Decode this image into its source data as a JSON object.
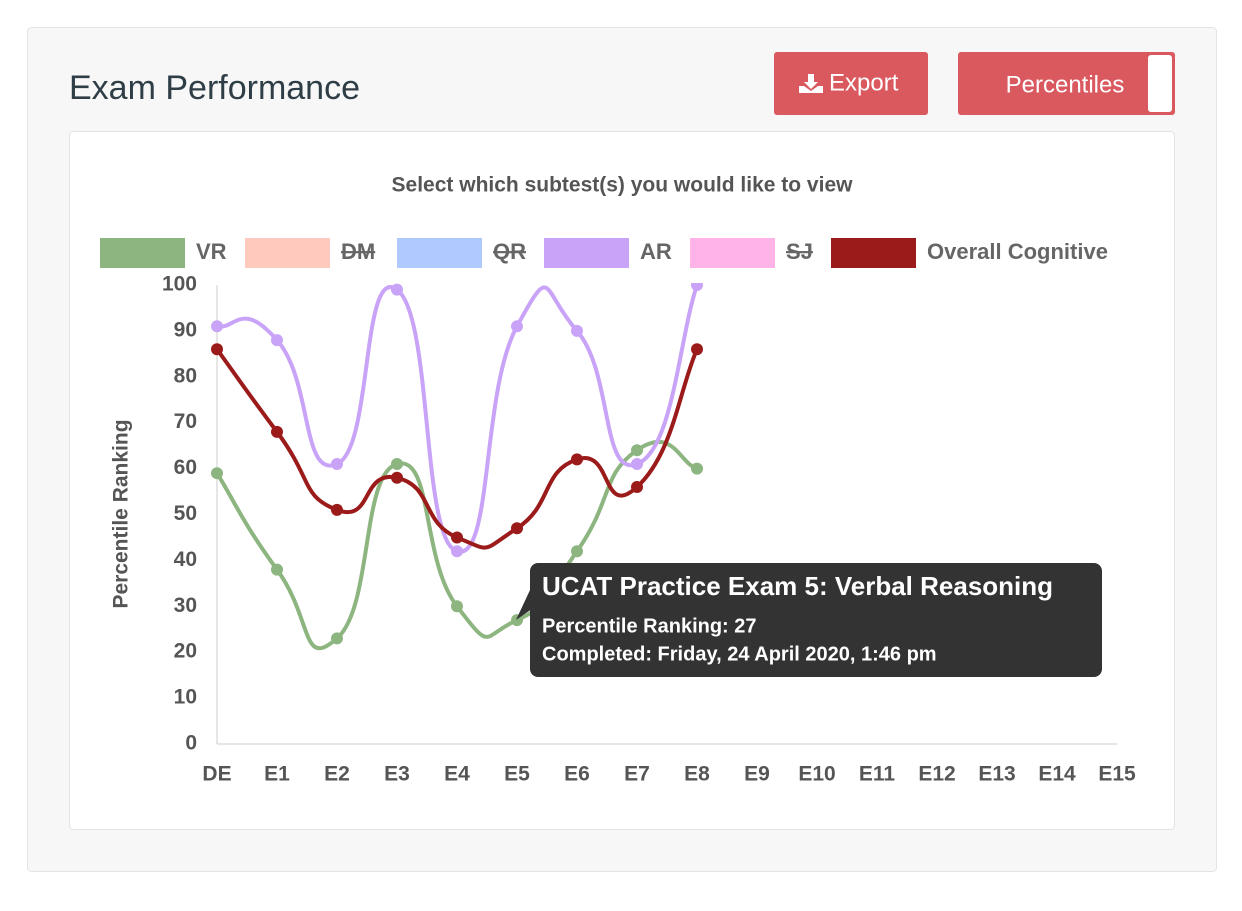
{
  "header": {
    "title": "Exam Performance"
  },
  "buttons": {
    "export": "Export",
    "percentiles": "Percentiles"
  },
  "chart_data": {
    "type": "line",
    "subtitle": "Select which subtest(s) you would like to view",
    "y_label": "Percentile Ranking",
    "categories": [
      "DE",
      "E1",
      "E2",
      "E3",
      "E4",
      "E5",
      "E6",
      "E7",
      "E8",
      "E9",
      "E10",
      "E11",
      "E12",
      "E13",
      "E14",
      "E15"
    ],
    "ylim": [
      0,
      100
    ],
    "yticks": [
      0,
      10,
      20,
      30,
      40,
      50,
      60,
      70,
      80,
      90,
      100
    ],
    "series": [
      {
        "name": "VR",
        "color": "#8db580",
        "values": [
          59,
          38,
          23,
          61,
          30,
          27,
          42,
          64,
          60,
          null,
          null,
          null,
          null,
          null,
          null,
          null
        ]
      },
      {
        "name": "DM",
        "color": "#ffc9bd",
        "hidden": true
      },
      {
        "name": "QR",
        "color": "#b0c9ff",
        "hidden": true
      },
      {
        "name": "AR",
        "color": "#c9a3f7",
        "values": [
          91,
          88,
          61,
          99,
          42,
          91,
          90,
          61,
          100,
          null,
          null,
          null,
          null,
          null,
          null,
          null
        ]
      },
      {
        "name": "SJ",
        "color": "#ffb3e6",
        "hidden": true
      },
      {
        "name": "Overall Cognitive",
        "color": "#9b1a1a",
        "values": [
          86,
          68,
          51,
          58,
          45,
          47,
          62,
          56,
          86,
          null,
          null,
          null,
          null,
          null,
          null,
          null
        ]
      }
    ]
  },
  "tooltip": {
    "title": "UCAT Practice Exam 5: Verbal Reasoning",
    "lines": [
      "Percentile Ranking: 27",
      "Completed: Friday, 24 April 2020, 1:46 pm"
    ]
  }
}
